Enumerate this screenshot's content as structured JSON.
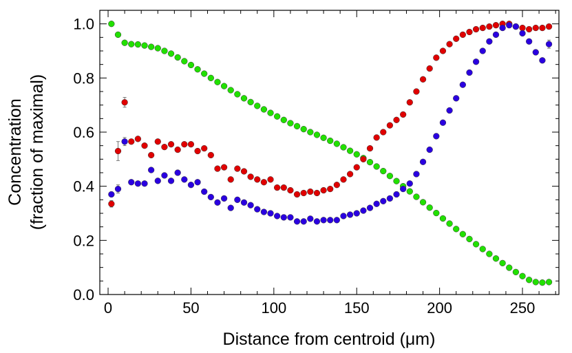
{
  "chart_data": {
    "type": "scatter",
    "title": "",
    "xlabel": "Distance from centroid (μm)",
    "ylabel_line1": "Concentration",
    "ylabel_line2": "(fraction of maximal)",
    "xlim": [
      -5,
      272
    ],
    "ylim": [
      0,
      1.05
    ],
    "xticks": [
      0,
      50,
      100,
      150,
      200,
      250
    ],
    "xtick_labels": [
      "0",
      "50",
      "100",
      "150",
      "200",
      "250"
    ],
    "yticks": [
      0.0,
      0.2,
      0.4,
      0.6,
      0.8,
      1.0
    ],
    "ytick_labels": [
      "0.0",
      "0.2",
      "0.4",
      "0.6",
      "0.8",
      "1.0"
    ],
    "grid": false,
    "legend": "none",
    "series": [
      {
        "name": "green",
        "color": "#22e000",
        "x": [
          2,
          6,
          10,
          14,
          18,
          22,
          26,
          30,
          34,
          38,
          42,
          46,
          50,
          54,
          58,
          62,
          66,
          70,
          74,
          78,
          82,
          86,
          90,
          94,
          98,
          102,
          106,
          110,
          114,
          118,
          122,
          126,
          130,
          134,
          138,
          142,
          146,
          150,
          154,
          158,
          162,
          166,
          170,
          174,
          178,
          182,
          186,
          190,
          194,
          198,
          202,
          206,
          210,
          214,
          218,
          222,
          226,
          230,
          234,
          238,
          242,
          246,
          250,
          254,
          258,
          262,
          266
        ],
        "values": [
          1.0,
          0.96,
          0.93,
          0.925,
          0.924,
          0.92,
          0.915,
          0.91,
          0.9,
          0.89,
          0.876,
          0.862,
          0.848,
          0.832,
          0.816,
          0.8,
          0.785,
          0.77,
          0.755,
          0.74,
          0.725,
          0.711,
          0.697,
          0.684,
          0.671,
          0.658,
          0.645,
          0.633,
          0.622,
          0.611,
          0.6,
          0.59,
          0.579,
          0.568,
          0.557,
          0.544,
          0.531,
          0.518,
          0.504,
          0.489,
          0.473,
          0.456,
          0.438,
          0.419,
          0.4,
          0.381,
          0.361,
          0.341,
          0.321,
          0.301,
          0.281,
          0.262,
          0.242,
          0.223,
          0.205,
          0.186,
          0.168,
          0.15,
          0.133,
          0.116,
          0.099,
          0.083,
          0.068,
          0.054,
          0.046,
          0.044,
          0.046
        ]
      },
      {
        "name": "red",
        "color": "#e00000",
        "x": [
          2,
          6,
          10,
          14,
          18,
          22,
          26,
          30,
          34,
          38,
          42,
          46,
          50,
          54,
          58,
          62,
          66,
          70,
          74,
          78,
          82,
          86,
          90,
          94,
          98,
          102,
          106,
          110,
          114,
          118,
          122,
          126,
          130,
          134,
          138,
          142,
          146,
          150,
          154,
          158,
          162,
          166,
          170,
          174,
          178,
          182,
          186,
          190,
          194,
          198,
          202,
          206,
          210,
          214,
          218,
          222,
          226,
          230,
          234,
          238,
          242,
          246,
          250,
          254,
          258,
          262,
          266
        ],
        "values": [
          0.335,
          0.53,
          0.71,
          0.565,
          0.575,
          0.55,
          0.515,
          0.565,
          0.545,
          0.555,
          0.535,
          0.555,
          0.555,
          0.53,
          0.54,
          0.515,
          0.465,
          0.47,
          0.425,
          0.465,
          0.455,
          0.435,
          0.425,
          0.415,
          0.425,
          0.395,
          0.395,
          0.385,
          0.37,
          0.375,
          0.38,
          0.375,
          0.385,
          0.39,
          0.405,
          0.425,
          0.445,
          0.47,
          0.5,
          0.54,
          0.58,
          0.6,
          0.625,
          0.645,
          0.665,
          0.71,
          0.75,
          0.795,
          0.835,
          0.875,
          0.9,
          0.925,
          0.945,
          0.96,
          0.97,
          0.98,
          0.985,
          0.99,
          0.995,
          1.0,
          1.0,
          0.99,
          0.985,
          0.98,
          0.985,
          0.985,
          0.99
        ],
        "errors": [
          0.012,
          0.035,
          0.018,
          0,
          0,
          0,
          0,
          0,
          0,
          0,
          0,
          0,
          0,
          0,
          0,
          0,
          0,
          0,
          0,
          0,
          0,
          0,
          0,
          0,
          0,
          0,
          0,
          0,
          0,
          0,
          0,
          0,
          0,
          0,
          0,
          0,
          0,
          0,
          0,
          0,
          0,
          0,
          0,
          0,
          0,
          0,
          0,
          0,
          0,
          0,
          0,
          0,
          0,
          0,
          0,
          0,
          0,
          0,
          0,
          0,
          0,
          0,
          0,
          0,
          0,
          0,
          0
        ]
      },
      {
        "name": "blue",
        "color": "#2a00e0",
        "x": [
          2,
          6,
          10,
          14,
          18,
          22,
          26,
          30,
          34,
          38,
          42,
          46,
          50,
          54,
          58,
          62,
          66,
          70,
          74,
          78,
          82,
          86,
          90,
          94,
          98,
          102,
          106,
          110,
          114,
          118,
          122,
          126,
          130,
          134,
          138,
          142,
          146,
          150,
          154,
          158,
          162,
          166,
          170,
          174,
          178,
          182,
          186,
          190,
          194,
          198,
          202,
          206,
          210,
          214,
          218,
          222,
          226,
          230,
          234,
          238,
          242,
          246,
          250,
          254,
          258,
          262,
          266
        ],
        "values": [
          0.37,
          0.39,
          0.565,
          0.415,
          0.41,
          0.41,
          0.46,
          0.42,
          0.44,
          0.42,
          0.45,
          0.425,
          0.405,
          0.415,
          0.38,
          0.36,
          0.34,
          0.355,
          0.32,
          0.35,
          0.34,
          0.33,
          0.315,
          0.305,
          0.3,
          0.29,
          0.285,
          0.285,
          0.27,
          0.27,
          0.28,
          0.27,
          0.275,
          0.275,
          0.275,
          0.29,
          0.295,
          0.3,
          0.31,
          0.32,
          0.335,
          0.345,
          0.355,
          0.37,
          0.39,
          0.41,
          0.445,
          0.49,
          0.535,
          0.585,
          0.635,
          0.68,
          0.725,
          0.775,
          0.82,
          0.86,
          0.9,
          0.935,
          0.96,
          0.985,
          0.995,
          0.99,
          0.965,
          0.935,
          0.895,
          0.865,
          0.925
        ],
        "errors": [
          0,
          0.015,
          0.015,
          0,
          0,
          0,
          0,
          0,
          0,
          0,
          0,
          0,
          0,
          0,
          0,
          0,
          0,
          0,
          0,
          0,
          0,
          0,
          0,
          0,
          0,
          0,
          0,
          0,
          0,
          0,
          0,
          0,
          0,
          0,
          0,
          0,
          0,
          0,
          0,
          0,
          0,
          0,
          0,
          0,
          0,
          0,
          0,
          0,
          0,
          0,
          0,
          0,
          0,
          0,
          0,
          0,
          0,
          0,
          0,
          0,
          0,
          0,
          0,
          0,
          0,
          0,
          0.015
        ]
      }
    ]
  }
}
